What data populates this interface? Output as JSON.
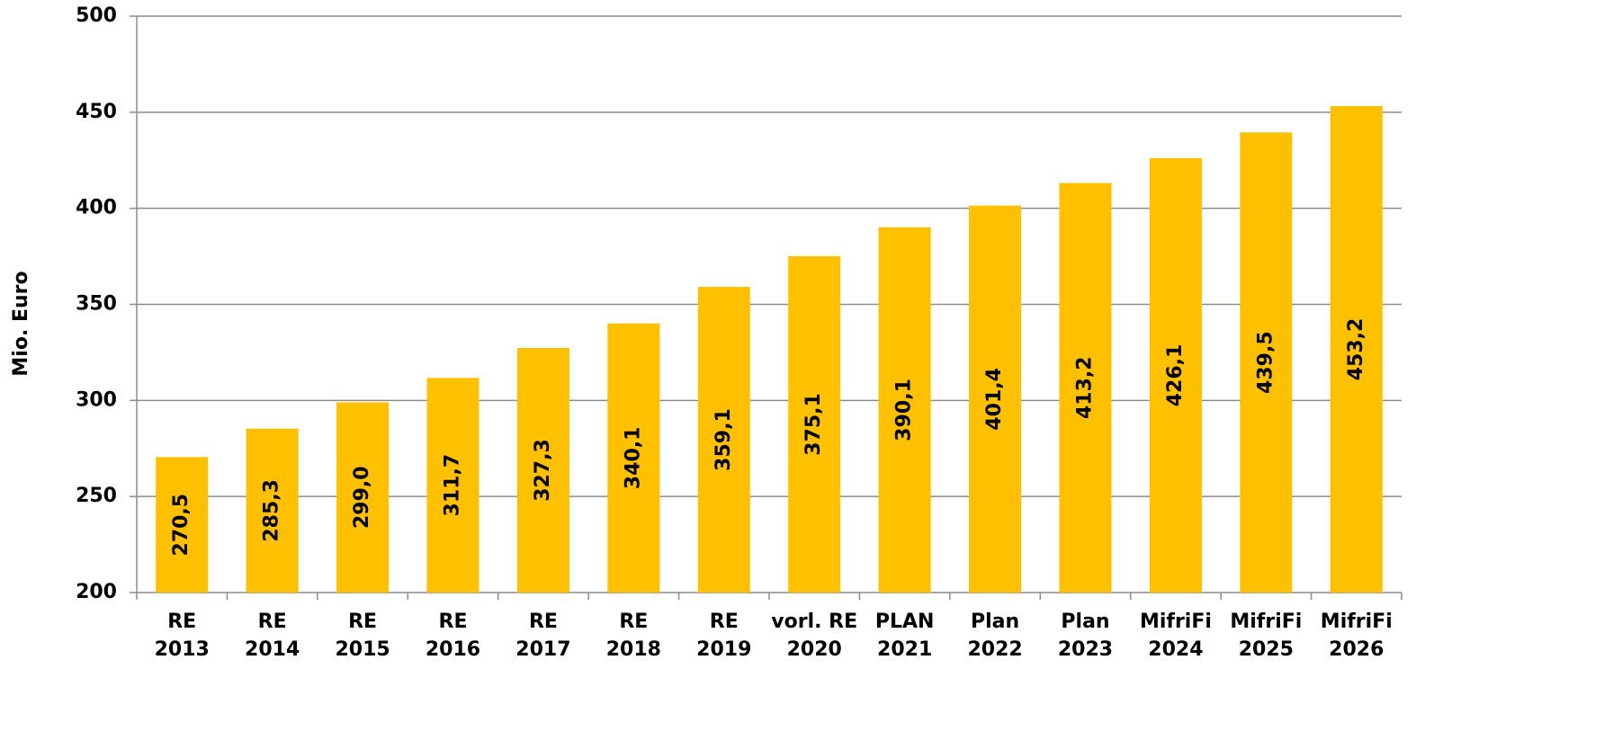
{
  "chart_data": {
    "type": "bar",
    "y_label": "Mio. Euro",
    "categories": [
      [
        "RE",
        "2013"
      ],
      [
        "RE",
        "2014"
      ],
      [
        "RE",
        "2015"
      ],
      [
        "RE",
        "2016"
      ],
      [
        "RE",
        "2017"
      ],
      [
        "RE",
        "2018"
      ],
      [
        "RE",
        "2019"
      ],
      [
        "vorl. RE",
        "2020"
      ],
      [
        "PLAN",
        "2021"
      ],
      [
        "Plan",
        "2022"
      ],
      [
        "Plan",
        "2023"
      ],
      [
        "MifriFi",
        "2024"
      ],
      [
        "MifriFi",
        "2025"
      ],
      [
        "MifriFi",
        "2026"
      ]
    ],
    "values": [
      270.5,
      285.3,
      299.0,
      311.7,
      327.3,
      340.1,
      359.1,
      375.1,
      390.1,
      401.4,
      413.2,
      426.1,
      439.5,
      453.2
    ],
    "value_labels": [
      "270,5",
      "285,3",
      "299,0",
      "311,7",
      "327,3",
      "340,1",
      "359,1",
      "375,1",
      "390,1",
      "401,4",
      "413,2",
      "426,1",
      "439,5",
      "453,2"
    ],
    "color": "#ffc000",
    "ylim": [
      200,
      500
    ],
    "yticks": [
      200,
      250,
      300,
      350,
      400,
      450,
      500
    ],
    "grid": true
  }
}
